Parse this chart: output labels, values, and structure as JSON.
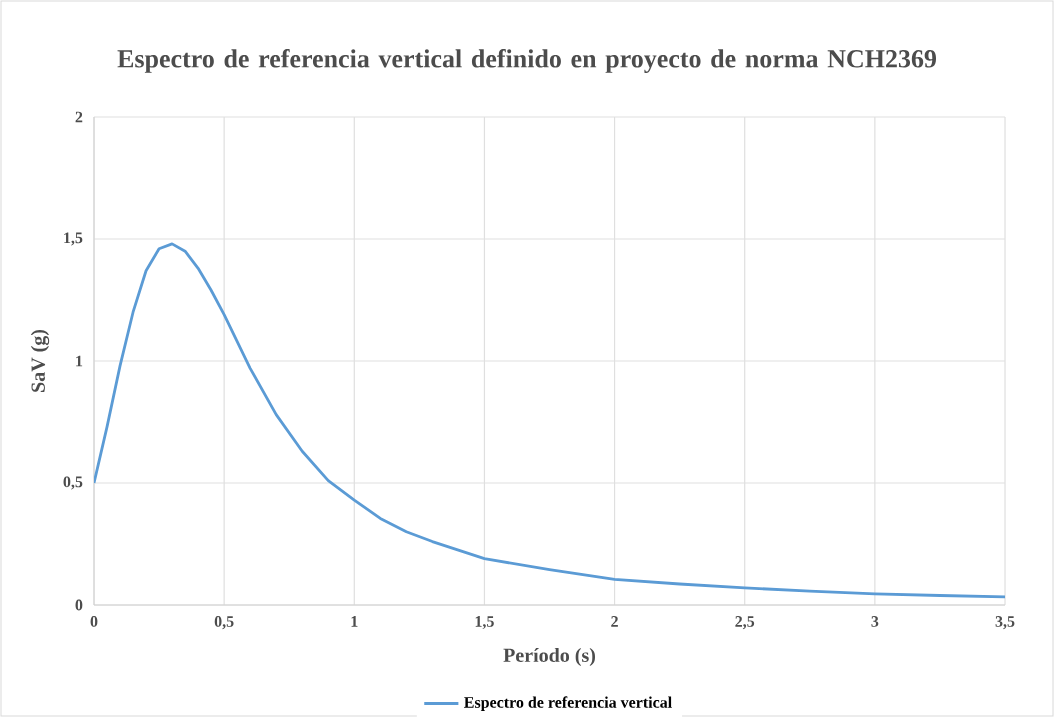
{
  "chart_data": {
    "type": "line",
    "title": "Espectro de referencia vertical definido en proyecto de norma NCH2369",
    "xlabel": "Período (s)",
    "ylabel": "SaV (g)",
    "x": [
      0,
      0.05,
      0.1,
      0.15,
      0.2,
      0.25,
      0.3,
      0.35,
      0.4,
      0.45,
      0.5,
      0.6,
      0.7,
      0.8,
      0.9,
      1.0,
      1.1,
      1.2,
      1.3,
      1.4,
      1.5,
      1.75,
      2.0,
      2.25,
      2.5,
      2.75,
      3.0,
      3.25,
      3.5
    ],
    "series": [
      {
        "name": "Espectro de referencia vertical",
        "color": "#5b9bd5",
        "values": [
          0.5,
          0.73,
          0.98,
          1.2,
          1.37,
          1.46,
          1.48,
          1.45,
          1.38,
          1.29,
          1.19,
          0.97,
          0.78,
          0.63,
          0.51,
          0.43,
          0.355,
          0.3,
          0.26,
          0.225,
          0.19,
          0.145,
          0.105,
          0.086,
          0.07,
          0.057,
          0.046,
          0.039,
          0.033
        ]
      }
    ],
    "xlim": [
      0,
      3.5
    ],
    "ylim": [
      0,
      2
    ],
    "xticks": [
      0,
      {
        "value": 0.5,
        "label": "0,5"
      },
      1,
      {
        "value": 1.5,
        "label": "1,5"
      },
      2,
      {
        "value": 2.5,
        "label": "2,5"
      },
      3,
      {
        "value": 3.5,
        "label": "3,5"
      }
    ],
    "yticks": [
      0,
      {
        "value": 0.5,
        "label": "0,5"
      },
      1,
      {
        "value": 1.5,
        "label": "1,5"
      },
      2
    ],
    "grid": true,
    "legend": "bottom",
    "marker": "none",
    "line_style": "solid"
  }
}
